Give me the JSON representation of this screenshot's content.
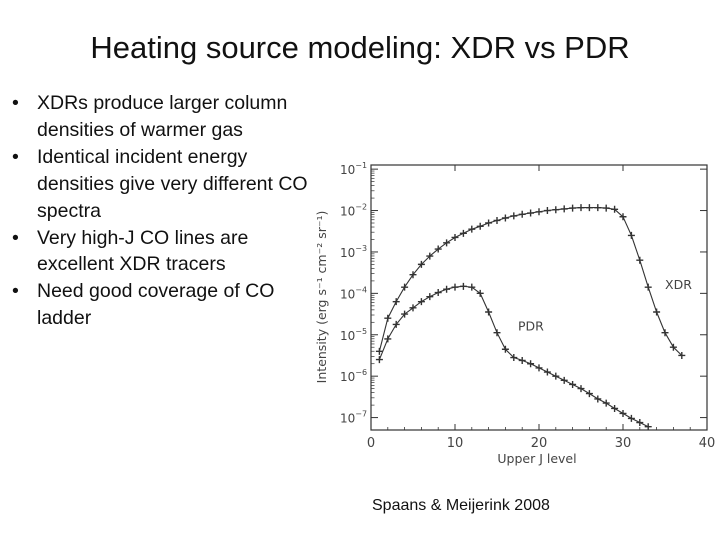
{
  "slide": {
    "title": "Heating source modeling: XDR vs PDR",
    "bullets": [
      "XDRs produce larger column densities of warmer gas",
      "Identical incident energy densities give very different CO spectra",
      "Very high-J CO lines are excellent XDR tracers",
      "Need good coverage of CO ladder"
    ],
    "citation": "Spaans & Meijerink 2008"
  },
  "chart_data": {
    "type": "line",
    "title": "",
    "xlabel": "Upper J level",
    "ylabel": "Intensity (erg s⁻¹ cm⁻² sr⁻¹)",
    "xlim": [
      0,
      40
    ],
    "ylim_log10": [
      -7.3,
      -0.9
    ],
    "y_scale": "log",
    "x_ticks": [
      "0",
      "10",
      "20",
      "30",
      "40"
    ],
    "y_ticks": [
      {
        "base": "10",
        "exp": "−1",
        "log10": -1
      },
      {
        "base": "10",
        "exp": "−2",
        "log10": -2
      },
      {
        "base": "10",
        "exp": "−3",
        "log10": -3
      },
      {
        "base": "10",
        "exp": "−4",
        "log10": -4
      },
      {
        "base": "10",
        "exp": "−5",
        "log10": -5
      },
      {
        "base": "10",
        "exp": "−6",
        "log10": -6
      },
      {
        "base": "10",
        "exp": "−7",
        "log10": -7
      }
    ],
    "grid": false,
    "series": [
      {
        "name": "XDR",
        "color": "#333333",
        "x": [
          1,
          2,
          3,
          4,
          5,
          6,
          7,
          8,
          9,
          10,
          11,
          12,
          13,
          14,
          15,
          16,
          17,
          18,
          19,
          20,
          21,
          22,
          23,
          24,
          25,
          26,
          27,
          28,
          29,
          30,
          31,
          32,
          33,
          34,
          35,
          36,
          37
        ],
        "log10_y": [
          -5.4,
          -4.6,
          -4.2,
          -3.85,
          -3.55,
          -3.3,
          -3.1,
          -2.93,
          -2.78,
          -2.65,
          -2.55,
          -2.45,
          -2.38,
          -2.3,
          -2.24,
          -2.18,
          -2.13,
          -2.09,
          -2.06,
          -2.03,
          -2.0,
          -1.98,
          -1.96,
          -1.94,
          -1.93,
          -1.93,
          -1.93,
          -1.94,
          -1.97,
          -2.15,
          -2.6,
          -3.2,
          -3.85,
          -4.45,
          -4.95,
          -5.3,
          -5.5
        ]
      },
      {
        "name": "PDR",
        "color": "#333333",
        "x": [
          1,
          2,
          3,
          4,
          5,
          6,
          7,
          8,
          9,
          10,
          11,
          12,
          13,
          14,
          15,
          16,
          17,
          18,
          19,
          20,
          21,
          22,
          23,
          24,
          25,
          26,
          27,
          28,
          29,
          30,
          31,
          32,
          33
        ],
        "log10_y": [
          -5.6,
          -5.1,
          -4.75,
          -4.5,
          -4.35,
          -4.2,
          -4.08,
          -3.98,
          -3.9,
          -3.85,
          -3.83,
          -3.85,
          -4.0,
          -4.45,
          -4.95,
          -5.35,
          -5.55,
          -5.62,
          -5.7,
          -5.8,
          -5.9,
          -6.0,
          -6.1,
          -6.2,
          -6.3,
          -6.42,
          -6.55,
          -6.65,
          -6.78,
          -6.9,
          -7.02,
          -7.12,
          -7.22
        ]
      }
    ],
    "annotations": [
      {
        "text": "XDR",
        "series": "XDR",
        "x": 35,
        "log10_y": -3.9
      },
      {
        "text": "PDR",
        "series": "PDR",
        "x": 17.5,
        "log10_y": -4.9
      }
    ]
  }
}
